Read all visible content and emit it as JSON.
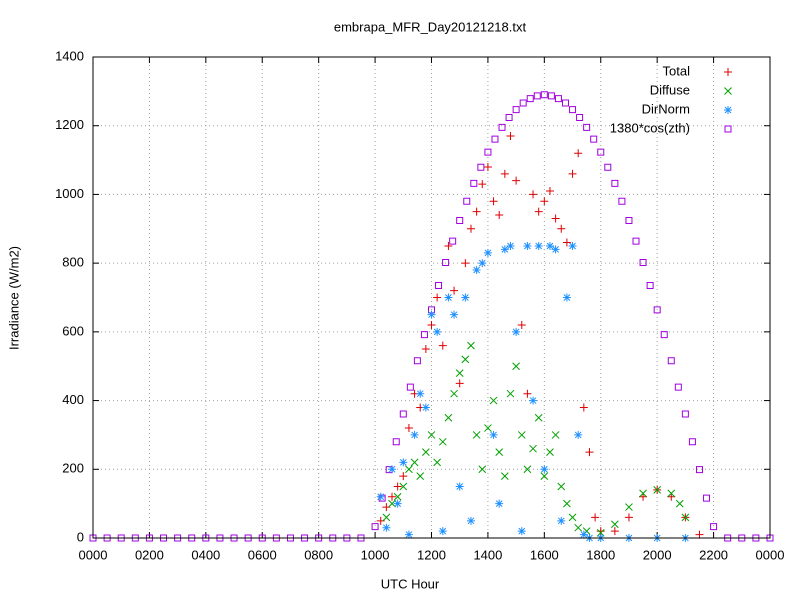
{
  "chart_data": {
    "type": "scatter",
    "title": "embrapa_MFR_Day20121218.txt",
    "x_label": "UTC Hour",
    "y_label": "Irradiance (W/m2)",
    "xlim": [
      0,
      24
    ],
    "ylim": [
      0,
      1400
    ],
    "xticks": [
      {
        "value": 0,
        "label": "0000"
      },
      {
        "value": 2,
        "label": "0200"
      },
      {
        "value": 4,
        "label": "0400"
      },
      {
        "value": 6,
        "label": "0600"
      },
      {
        "value": 8,
        "label": "0800"
      },
      {
        "value": 10,
        "label": "1000"
      },
      {
        "value": 12,
        "label": "1200"
      },
      {
        "value": 14,
        "label": "1400"
      },
      {
        "value": 16,
        "label": "1600"
      },
      {
        "value": 18,
        "label": "1800"
      },
      {
        "value": 20,
        "label": "2000"
      },
      {
        "value": 22,
        "label": "2200"
      },
      {
        "value": 24,
        "label": "0000"
      }
    ],
    "yticks": [
      0,
      200,
      400,
      600,
      800,
      1000,
      1200,
      1400
    ],
    "grid": true,
    "legend": "top-right",
    "series": [
      {
        "name": "Total",
        "color": "#e00000",
        "marker": "plus",
        "x": [
          10.2,
          10.4,
          10.6,
          10.8,
          11.0,
          11.2,
          11.4,
          11.6,
          11.8,
          12.0,
          12.2,
          12.4,
          12.6,
          12.8,
          13.0,
          13.2,
          13.4,
          13.6,
          13.8,
          14.0,
          14.2,
          14.4,
          14.6,
          14.8,
          15.0,
          15.2,
          15.4,
          15.6,
          15.8,
          16.0,
          16.2,
          16.4,
          16.6,
          16.8,
          17.0,
          17.2,
          17.4,
          17.6,
          17.8,
          18.0,
          18.5,
          19.0,
          19.5,
          20.0,
          20.5,
          21.0,
          21.5
        ],
        "values": [
          50,
          90,
          120,
          150,
          180,
          320,
          420,
          380,
          550,
          620,
          700,
          560,
          850,
          720,
          450,
          800,
          900,
          950,
          1030,
          1080,
          980,
          940,
          1060,
          1170,
          1040,
          620,
          420,
          1000,
          950,
          980,
          1010,
          930,
          900,
          860,
          1060,
          1120,
          380,
          250,
          60,
          20,
          20,
          60,
          120,
          140,
          120,
          60,
          10
        ]
      },
      {
        "name": "Diffuse",
        "color": "#00a000",
        "marker": "cross",
        "x": [
          10.4,
          10.6,
          10.8,
          11.0,
          11.2,
          11.4,
          11.6,
          11.8,
          12.0,
          12.2,
          12.4,
          12.6,
          12.8,
          13.0,
          13.2,
          13.4,
          13.6,
          13.8,
          14.0,
          14.2,
          14.4,
          14.6,
          14.8,
          15.0,
          15.2,
          15.4,
          15.6,
          15.8,
          16.0,
          16.2,
          16.4,
          16.6,
          16.8,
          17.0,
          17.2,
          17.5,
          18.0,
          18.5,
          19.0,
          19.5,
          20.0,
          20.5,
          20.8,
          21.0
        ],
        "values": [
          60,
          100,
          120,
          150,
          200,
          220,
          180,
          250,
          300,
          220,
          280,
          350,
          420,
          480,
          520,
          560,
          300,
          200,
          320,
          400,
          250,
          180,
          420,
          500,
          300,
          200,
          260,
          350,
          180,
          250,
          300,
          150,
          100,
          60,
          30,
          20,
          15,
          40,
          90,
          130,
          140,
          130,
          100,
          60
        ]
      },
      {
        "name": "DirNorm",
        "color": "#1e90ff",
        "marker": "star",
        "x": [
          10.2,
          10.4,
          10.6,
          10.8,
          11.0,
          11.2,
          11.4,
          11.6,
          11.8,
          12.0,
          12.2,
          12.4,
          12.6,
          12.8,
          13.0,
          13.2,
          13.4,
          13.6,
          13.8,
          14.0,
          14.2,
          14.4,
          14.6,
          14.8,
          15.0,
          15.2,
          15.4,
          15.6,
          15.8,
          16.0,
          16.2,
          16.4,
          16.6,
          16.8,
          17.0,
          17.2,
          17.4,
          17.6,
          18.0,
          19.0,
          20.0,
          21.0
        ],
        "values": [
          120,
          30,
          200,
          100,
          220,
          10,
          300,
          420,
          380,
          650,
          600,
          20,
          700,
          650,
          150,
          700,
          50,
          780,
          800,
          830,
          300,
          100,
          840,
          850,
          600,
          20,
          850,
          400,
          850,
          200,
          850,
          840,
          50,
          700,
          850,
          300,
          10,
          0,
          0,
          0,
          0,
          0
        ]
      },
      {
        "name": "1380*cos(zth)",
        "color": "#a000e0",
        "marker": "square",
        "x": [
          0,
          0.5,
          1,
          1.5,
          2,
          2.5,
          3,
          3.5,
          4,
          4.5,
          5,
          5.5,
          6,
          6.5,
          7,
          7.5,
          8,
          8.5,
          9,
          9.5,
          10,
          10.25,
          10.5,
          10.75,
          11,
          11.25,
          11.5,
          11.75,
          12,
          12.25,
          12.5,
          12.75,
          13,
          13.25,
          13.5,
          13.75,
          14,
          14.25,
          14.5,
          14.75,
          15,
          15.25,
          15.5,
          15.75,
          16,
          16.25,
          16.5,
          16.75,
          17,
          17.25,
          17.5,
          17.75,
          18,
          18.25,
          18.5,
          18.75,
          19,
          19.25,
          19.5,
          19.75,
          20,
          20.25,
          20.5,
          20.75,
          21,
          21.25,
          21.5,
          21.75,
          22,
          22.5,
          23,
          23.5,
          24
        ],
        "values": [
          0,
          0,
          0,
          0,
          0,
          0,
          0,
          0,
          0,
          0,
          0,
          0,
          0,
          0,
          0,
          0,
          0,
          0,
          0,
          0,
          33,
          116,
          199,
          280,
          361,
          439,
          516,
          592,
          664,
          735,
          802,
          864,
          924,
          980,
          1032,
          1079,
          1123,
          1161,
          1195,
          1224,
          1247,
          1266,
          1279,
          1287,
          1290,
          1287,
          1279,
          1266,
          1247,
          1224,
          1195,
          1161,
          1123,
          1079,
          1032,
          980,
          924,
          864,
          802,
          735,
          664,
          592,
          516,
          439,
          361,
          280,
          199,
          116,
          33,
          0,
          0,
          0,
          0
        ]
      }
    ]
  }
}
